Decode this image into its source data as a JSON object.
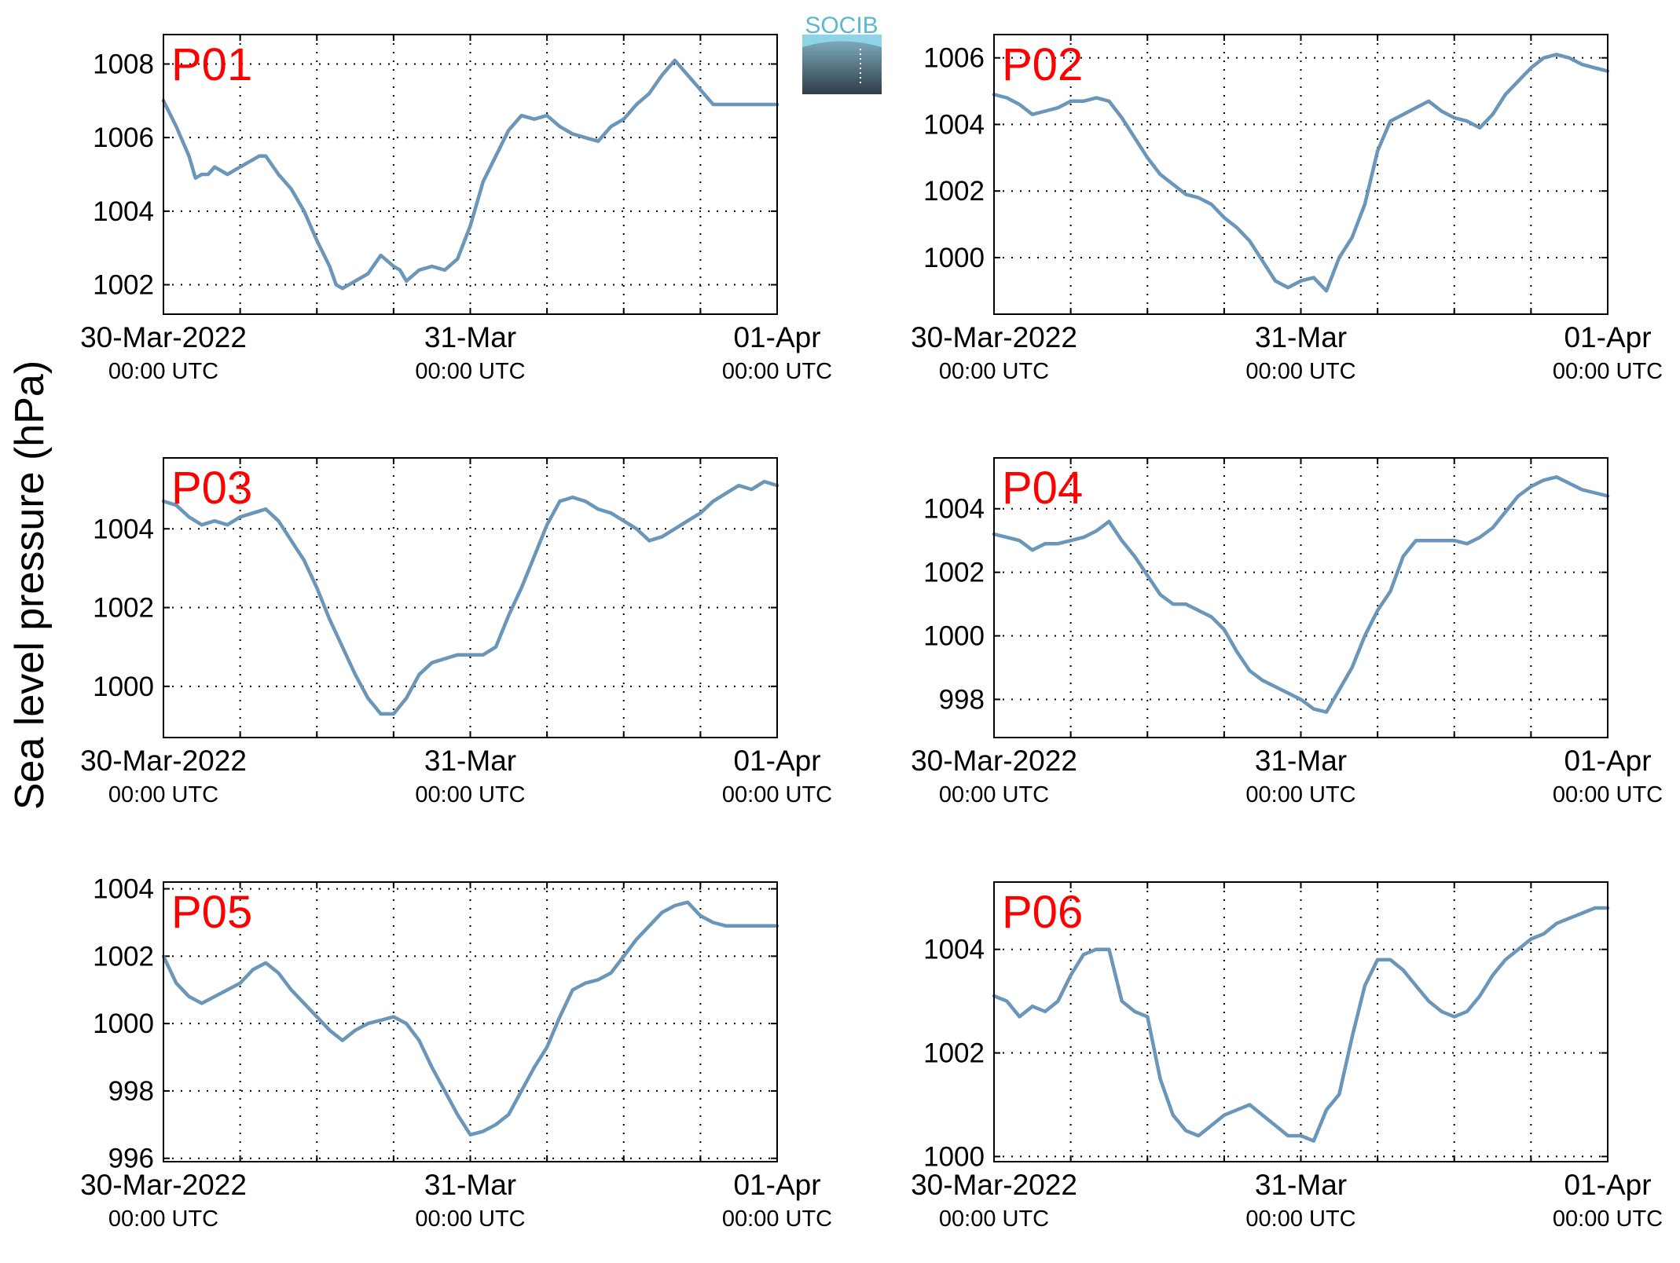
{
  "figure": {
    "ylabel": "Sea level pressure (hPa)",
    "logo_text": "SOCIB",
    "line_color": "#6a96ba",
    "label_color": "#ff0000"
  },
  "chart_data": [
    {
      "type": "line",
      "label": "P01",
      "x_ticks": [
        {
          "main": "30-Mar-2022",
          "sub": "00:00 UTC"
        },
        {
          "main": "31-Mar",
          "sub": "00:00 UTC"
        },
        {
          "main": "01-Apr",
          "sub": "00:00 UTC"
        }
      ],
      "xlim_hours": [
        0,
        48
      ],
      "ylim": [
        1001.2,
        1008.8
      ],
      "yticks": [
        1002,
        1004,
        1006,
        1008
      ],
      "series": [
        {
          "x": [
            0,
            1,
            2,
            2.5,
            3,
            3.5,
            4,
            5,
            6,
            7,
            7.5,
            8,
            9,
            10,
            11,
            12,
            13,
            13.5,
            14,
            15,
            16,
            17,
            18,
            18.5,
            19,
            20,
            21,
            22,
            23,
            24,
            25,
            26,
            27,
            28,
            29,
            30,
            31,
            32,
            33,
            34,
            35,
            36,
            37,
            38,
            39,
            40,
            41,
            41.5,
            42,
            43,
            44,
            45,
            46,
            47,
            48
          ],
          "y": [
            1007.0,
            1006.3,
            1005.5,
            1004.9,
            1005.0,
            1005.0,
            1005.2,
            1005.0,
            1005.2,
            1005.4,
            1005.5,
            1005.5,
            1005.0,
            1004.6,
            1004.0,
            1003.2,
            1002.5,
            1002.0,
            1001.9,
            1002.1,
            1002.3,
            1002.8,
            1002.5,
            1002.4,
            1002.1,
            1002.4,
            1002.5,
            1002.4,
            1002.7,
            1003.6,
            1004.8,
            1005.5,
            1006.2,
            1006.6,
            1006.5,
            1006.6,
            1006.3,
            1006.1,
            1006.0,
            1005.9,
            1006.3,
            1006.5,
            1006.9,
            1007.2,
            1007.7,
            1008.1,
            1007.7,
            1007.5,
            1007.3,
            1006.9,
            1006.9,
            1006.9,
            1006.9,
            1006.9,
            1006.9
          ]
        }
      ]
    },
    {
      "type": "line",
      "label": "P02",
      "x_ticks": [
        {
          "main": "30-Mar-2022",
          "sub": "00:00 UTC"
        },
        {
          "main": "31-Mar",
          "sub": "00:00 UTC"
        },
        {
          "main": "01-Apr",
          "sub": "00:00 UTC"
        }
      ],
      "xlim_hours": [
        0,
        48
      ],
      "ylim": [
        998.3,
        1006.7
      ],
      "yticks": [
        1000,
        1002,
        1004,
        1006
      ],
      "series": [
        {
          "x": [
            0,
            1,
            2,
            3,
            4,
            5,
            6,
            7,
            8,
            9,
            10,
            11,
            12,
            13,
            14,
            15,
            16,
            17,
            18,
            19,
            20,
            21,
            22,
            23,
            24,
            25,
            26,
            27,
            28,
            29,
            30,
            31,
            32,
            33,
            34,
            35,
            36,
            37,
            38,
            39,
            40,
            41,
            42,
            43,
            44,
            45,
            46,
            47,
            48
          ],
          "y": [
            1004.9,
            1004.8,
            1004.6,
            1004.3,
            1004.4,
            1004.5,
            1004.7,
            1004.7,
            1004.8,
            1004.7,
            1004.2,
            1003.6,
            1003.0,
            1002.5,
            1002.2,
            1001.9,
            1001.8,
            1001.6,
            1001.2,
            1000.9,
            1000.5,
            999.9,
            999.3,
            999.1,
            999.3,
            999.4,
            999.0,
            1000.0,
            1000.6,
            1001.6,
            1003.2,
            1004.1,
            1004.3,
            1004.5,
            1004.7,
            1004.4,
            1004.2,
            1004.1,
            1003.9,
            1004.3,
            1004.9,
            1005.3,
            1005.7,
            1006.0,
            1006.1,
            1006.0,
            1005.8,
            1005.7,
            1005.6
          ]
        }
      ]
    },
    {
      "type": "line",
      "label": "P03",
      "x_ticks": [
        {
          "main": "30-Mar-2022",
          "sub": "00:00 UTC"
        },
        {
          "main": "31-Mar",
          "sub": "00:00 UTC"
        },
        {
          "main": "01-Apr",
          "sub": "00:00 UTC"
        }
      ],
      "xlim_hours": [
        0,
        48
      ],
      "ylim": [
        998.7,
        1005.8
      ],
      "yticks": [
        1000,
        1002,
        1004
      ],
      "series": [
        {
          "x": [
            0,
            1,
            2,
            3,
            4,
            5,
            6,
            7,
            8,
            9,
            10,
            11,
            12,
            13,
            14,
            15,
            16,
            17,
            18,
            19,
            20,
            21,
            22,
            23,
            24,
            25,
            26,
            27,
            28,
            29,
            30,
            31,
            32,
            33,
            34,
            35,
            36,
            37,
            38,
            39,
            40,
            41,
            42,
            43,
            44,
            45,
            46,
            47,
            48
          ],
          "y": [
            1004.7,
            1004.6,
            1004.3,
            1004.1,
            1004.2,
            1004.1,
            1004.3,
            1004.4,
            1004.5,
            1004.2,
            1003.7,
            1003.2,
            1002.5,
            1001.7,
            1001.0,
            1000.3,
            999.7,
            999.3,
            999.3,
            999.7,
            1000.3,
            1000.6,
            1000.7,
            1000.8,
            1000.8,
            1000.8,
            1001.0,
            1001.8,
            1002.5,
            1003.3,
            1004.1,
            1004.7,
            1004.8,
            1004.7,
            1004.5,
            1004.4,
            1004.2,
            1004.0,
            1003.7,
            1003.8,
            1004.0,
            1004.2,
            1004.4,
            1004.7,
            1004.9,
            1005.1,
            1005.0,
            1005.2,
            1005.1
          ]
        }
      ]
    },
    {
      "type": "line",
      "label": "P04",
      "x_ticks": [
        {
          "main": "30-Mar-2022",
          "sub": "00:00 UTC"
        },
        {
          "main": "31-Mar",
          "sub": "00:00 UTC"
        },
        {
          "main": "01-Apr",
          "sub": "00:00 UTC"
        }
      ],
      "xlim_hours": [
        0,
        48
      ],
      "ylim": [
        996.8,
        1005.6
      ],
      "yticks": [
        998,
        1000,
        1002,
        1004
      ],
      "series": [
        {
          "x": [
            0,
            1,
            2,
            3,
            4,
            5,
            6,
            7,
            8,
            9,
            10,
            11,
            12,
            13,
            14,
            15,
            16,
            17,
            18,
            19,
            20,
            21,
            22,
            23,
            24,
            25,
            26,
            27,
            28,
            29,
            30,
            31,
            32,
            33,
            34,
            35,
            36,
            37,
            38,
            39,
            40,
            41,
            42,
            43,
            44,
            45,
            46,
            47,
            48
          ],
          "y": [
            1003.2,
            1003.1,
            1003.0,
            1002.7,
            1002.9,
            1002.9,
            1003.0,
            1003.1,
            1003.3,
            1003.6,
            1003.0,
            1002.5,
            1001.9,
            1001.3,
            1001.0,
            1001.0,
            1000.8,
            1000.6,
            1000.2,
            999.5,
            998.9,
            998.6,
            998.4,
            998.2,
            998.0,
            997.7,
            997.6,
            998.3,
            999.0,
            1000.0,
            1000.8,
            1001.4,
            1002.5,
            1003.0,
            1003.0,
            1003.0,
            1003.0,
            1002.9,
            1003.1,
            1003.4,
            1003.9,
            1004.4,
            1004.7,
            1004.9,
            1005.0,
            1004.8,
            1004.6,
            1004.5,
            1004.4
          ]
        }
      ]
    },
    {
      "type": "line",
      "label": "P05",
      "x_ticks": [
        {
          "main": "30-Mar-2022",
          "sub": "00:00 UTC"
        },
        {
          "main": "31-Mar",
          "sub": "00:00 UTC"
        },
        {
          "main": "01-Apr",
          "sub": "00:00 UTC"
        }
      ],
      "xlim_hours": [
        0,
        48
      ],
      "ylim": [
        995.9,
        1004.2
      ],
      "yticks": [
        996,
        998,
        1000,
        1002,
        1004
      ],
      "series": [
        {
          "x": [
            0,
            1,
            2,
            3,
            4,
            5,
            6,
            7,
            8,
            9,
            10,
            11,
            12,
            13,
            14,
            15,
            16,
            17,
            18,
            19,
            20,
            21,
            22,
            23,
            24,
            25,
            26,
            27,
            28,
            29,
            30,
            31,
            32,
            33,
            34,
            35,
            36,
            37,
            38,
            39,
            40,
            41,
            42,
            43,
            44,
            45,
            46,
            47,
            48
          ],
          "y": [
            1002.0,
            1001.2,
            1000.8,
            1000.6,
            1000.8,
            1001.0,
            1001.2,
            1001.6,
            1001.8,
            1001.5,
            1001.0,
            1000.6,
            1000.2,
            999.8,
            999.5,
            999.8,
            1000.0,
            1000.1,
            1000.2,
            1000.0,
            999.5,
            998.7,
            998.0,
            997.3,
            996.7,
            996.8,
            997.0,
            997.3,
            998.0,
            998.7,
            999.3,
            1000.2,
            1001.0,
            1001.2,
            1001.3,
            1001.5,
            1002.0,
            1002.5,
            1002.9,
            1003.3,
            1003.5,
            1003.6,
            1003.2,
            1003.0,
            1002.9,
            1002.9,
            1002.9,
            1002.9,
            1002.9
          ]
        }
      ]
    },
    {
      "type": "line",
      "label": "P06",
      "x_ticks": [
        {
          "main": "30-Mar-2022",
          "sub": "00:00 UTC"
        },
        {
          "main": "31-Mar",
          "sub": "00:00 UTC"
        },
        {
          "main": "01-Apr",
          "sub": "00:00 UTC"
        }
      ],
      "xlim_hours": [
        0,
        48
      ],
      "ylim": [
        999.9,
        1005.3
      ],
      "yticks": [
        1000,
        1002,
        1004
      ],
      "series": [
        {
          "x": [
            0,
            1,
            2,
            3,
            4,
            5,
            6,
            7,
            8,
            9,
            10,
            11,
            12,
            13,
            14,
            15,
            16,
            17,
            18,
            19,
            20,
            21,
            22,
            23,
            24,
            25,
            26,
            27,
            28,
            29,
            30,
            31,
            32,
            33,
            34,
            35,
            36,
            37,
            38,
            39,
            40,
            41,
            42,
            43,
            44,
            45,
            46,
            47,
            48
          ],
          "y": [
            1003.1,
            1003.0,
            1002.7,
            1002.9,
            1002.8,
            1003.0,
            1003.5,
            1003.9,
            1004.0,
            1004.0,
            1003.0,
            1002.8,
            1002.7,
            1001.5,
            1000.8,
            1000.5,
            1000.4,
            1000.6,
            1000.8,
            1000.9,
            1001.0,
            1000.8,
            1000.6,
            1000.4,
            1000.4,
            1000.3,
            1000.9,
            1001.2,
            1002.3,
            1003.3,
            1003.8,
            1003.8,
            1003.6,
            1003.3,
            1003.0,
            1002.8,
            1002.7,
            1002.8,
            1003.1,
            1003.5,
            1003.8,
            1004.0,
            1004.2,
            1004.3,
            1004.5,
            1004.6,
            1004.7,
            1004.8,
            1004.8
          ]
        }
      ]
    }
  ]
}
